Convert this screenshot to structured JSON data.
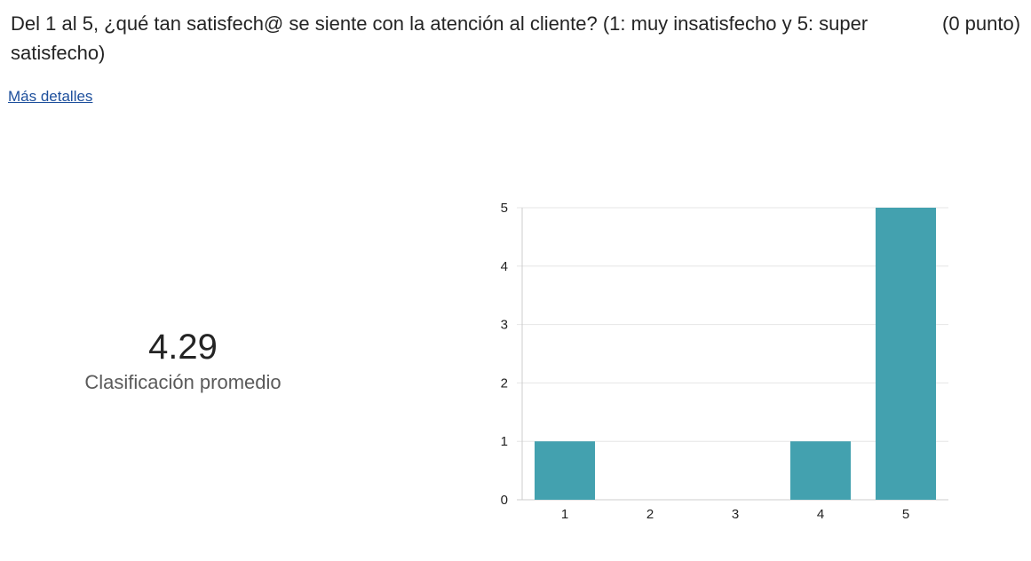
{
  "question": {
    "text": "Del 1 al 5, ¿qué tan satisfech@ se siente con la atención al cliente? (1: muy insatisfecho y 5: super satisfecho)",
    "points": "(0 punto)"
  },
  "details_link": "Más detalles",
  "summary": {
    "average": "4.29",
    "average_label": "Clasificación promedio"
  },
  "colors": {
    "bar": "#43a1af",
    "grid": "#e6e6e6",
    "axis": "#cccccc",
    "tick_text": "#222222"
  },
  "chart_data": {
    "type": "bar",
    "categories": [
      "1",
      "2",
      "3",
      "4",
      "5"
    ],
    "values": [
      1,
      0,
      0,
      1,
      5
    ],
    "title": "",
    "xlabel": "",
    "ylabel": "",
    "ylim": [
      0,
      5
    ],
    "yticks": [
      0,
      1,
      2,
      3,
      4,
      5
    ],
    "grid": true,
    "legend": "none"
  }
}
